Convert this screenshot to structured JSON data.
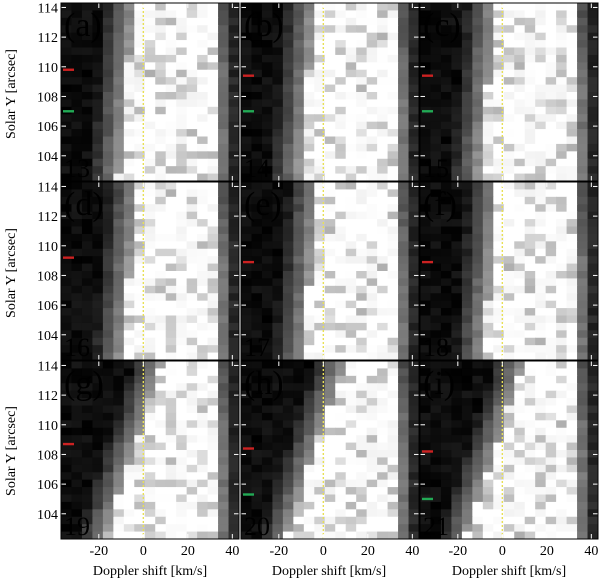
{
  "figure": {
    "ylabel": "Solar Y [arcsec]",
    "xlabel": "Doppler shift [km/s]",
    "yticks": [
      "114",
      "112",
      "110",
      "108",
      "106",
      "104"
    ],
    "xticks": [
      "-20",
      "0",
      "20",
      "40"
    ]
  },
  "colors": {
    "red_marker": "#cc2222",
    "green_marker": "#22aa55",
    "zero_line": "#e8e055"
  },
  "chart_data": [
    {
      "type": "heatmap",
      "panel": "(a)",
      "number": "13",
      "x_range": [
        -37,
        43
      ],
      "y_range": [
        102.3,
        114.3
      ],
      "red_marker_y": 109.8,
      "green_marker_y": 107.0,
      "zero_velocity_x": 0
    },
    {
      "type": "heatmap",
      "panel": "(b)",
      "number": "14",
      "x_range": [
        -37,
        43
      ],
      "y_range": [
        102.3,
        114.3
      ],
      "red_marker_y": 109.4,
      "green_marker_y": 107.0,
      "zero_velocity_x": 0
    },
    {
      "type": "heatmap",
      "panel": "(c)",
      "number": "15",
      "x_range": [
        -37,
        43
      ],
      "y_range": [
        102.3,
        114.3
      ],
      "red_marker_y": 109.4,
      "green_marker_y": 107.0,
      "zero_velocity_x": 0
    },
    {
      "type": "heatmap",
      "panel": "(d)",
      "number": "16",
      "x_range": [
        -37,
        43
      ],
      "y_range": [
        102.3,
        114.3
      ],
      "red_marker_y": 109.2,
      "green_marker_y": null,
      "zero_velocity_x": 0
    },
    {
      "type": "heatmap",
      "panel": "(e)",
      "number": "17",
      "x_range": [
        -37,
        43
      ],
      "y_range": [
        102.3,
        114.3
      ],
      "red_marker_y": 108.9,
      "green_marker_y": null,
      "zero_velocity_x": 0
    },
    {
      "type": "heatmap",
      "panel": "(f)",
      "number": "18",
      "x_range": [
        -37,
        43
      ],
      "y_range": [
        102.3,
        114.3
      ],
      "red_marker_y": 108.9,
      "green_marker_y": null,
      "zero_velocity_x": 0
    },
    {
      "type": "heatmap",
      "panel": "(g)",
      "number": "19",
      "x_range": [
        -37,
        43
      ],
      "y_range": [
        102.3,
        114.3
      ],
      "red_marker_y": 108.7,
      "green_marker_y": null,
      "zero_velocity_x": 0
    },
    {
      "type": "heatmap",
      "panel": "(h)",
      "number": "20",
      "x_range": [
        -37,
        43
      ],
      "y_range": [
        102.3,
        114.3
      ],
      "red_marker_y": 108.4,
      "green_marker_y": 105.3,
      "zero_velocity_x": 0
    },
    {
      "type": "heatmap",
      "panel": "(i)",
      "number": "21",
      "x_range": [
        -37,
        43
      ],
      "y_range": [
        102.3,
        114.3
      ],
      "red_marker_y": 108.2,
      "green_marker_y": 105.0,
      "zero_velocity_x": 0
    }
  ]
}
